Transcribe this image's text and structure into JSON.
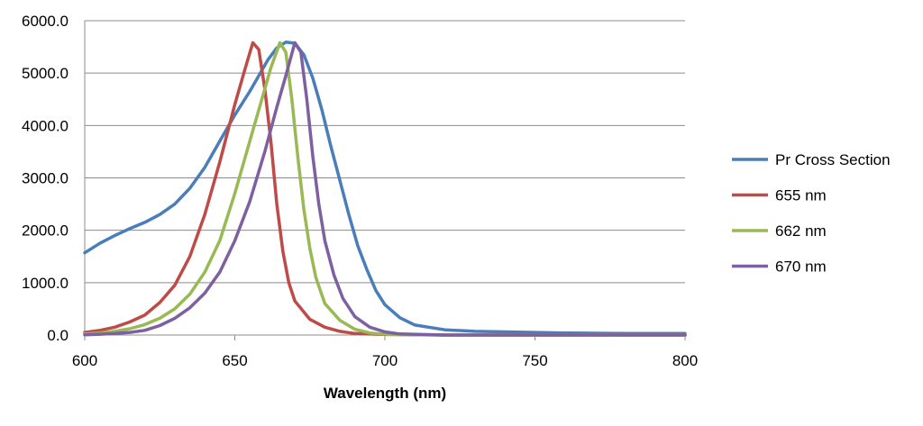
{
  "chart_data": {
    "type": "line",
    "title": "",
    "xlabel": "Wavelength (nm)",
    "ylabel": "",
    "xlim": [
      600,
      800
    ],
    "ylim": [
      0,
      6000
    ],
    "x_ticks": [
      600,
      650,
      700,
      750,
      800
    ],
    "x_tick_labels": [
      "600",
      "650",
      "700",
      "750",
      "800"
    ],
    "y_ticks": [
      0,
      1000,
      2000,
      3000,
      4000,
      5000,
      6000
    ],
    "y_tick_labels": [
      "0.0",
      "1000.0",
      "2000.0",
      "3000.0",
      "4000.0",
      "5000.0",
      "6000.0"
    ],
    "grid": true,
    "legend_position": "right",
    "series": [
      {
        "name": "Pr Cross Section",
        "color": "#4a7ebb",
        "points": [
          [
            600,
            1570
          ],
          [
            605,
            1750
          ],
          [
            610,
            1900
          ],
          [
            615,
            2030
          ],
          [
            620,
            2150
          ],
          [
            625,
            2300
          ],
          [
            630,
            2500
          ],
          [
            635,
            2800
          ],
          [
            640,
            3200
          ],
          [
            645,
            3700
          ],
          [
            650,
            4200
          ],
          [
            655,
            4650
          ],
          [
            658,
            4950
          ],
          [
            661,
            5250
          ],
          [
            664,
            5480
          ],
          [
            667,
            5590
          ],
          [
            670,
            5570
          ],
          [
            673,
            5350
          ],
          [
            676,
            4900
          ],
          [
            679,
            4300
          ],
          [
            682,
            3600
          ],
          [
            685,
            2950
          ],
          [
            688,
            2300
          ],
          [
            691,
            1700
          ],
          [
            694,
            1250
          ],
          [
            697,
            850
          ],
          [
            700,
            580
          ],
          [
            705,
            330
          ],
          [
            710,
            190
          ],
          [
            720,
            100
          ],
          [
            730,
            70
          ],
          [
            740,
            60
          ],
          [
            750,
            50
          ],
          [
            760,
            40
          ],
          [
            770,
            35
          ],
          [
            780,
            30
          ],
          [
            790,
            30
          ],
          [
            800,
            30
          ]
        ]
      },
      {
        "name": "655 nm",
        "color": "#be4b48",
        "points": [
          [
            600,
            50
          ],
          [
            605,
            90
          ],
          [
            610,
            150
          ],
          [
            615,
            250
          ],
          [
            620,
            380
          ],
          [
            625,
            620
          ],
          [
            630,
            950
          ],
          [
            635,
            1500
          ],
          [
            640,
            2300
          ],
          [
            645,
            3300
          ],
          [
            650,
            4400
          ],
          [
            653,
            5000
          ],
          [
            656,
            5580
          ],
          [
            658,
            5450
          ],
          [
            660,
            4700
          ],
          [
            662,
            3700
          ],
          [
            664,
            2500
          ],
          [
            666,
            1600
          ],
          [
            668,
            1000
          ],
          [
            670,
            650
          ],
          [
            675,
            300
          ],
          [
            680,
            150
          ],
          [
            685,
            70
          ],
          [
            690,
            30
          ],
          [
            700,
            10
          ],
          [
            720,
            0
          ],
          [
            800,
            0
          ]
        ]
      },
      {
        "name": "662 nm",
        "color": "#98b954",
        "points": [
          [
            600,
            20
          ],
          [
            605,
            40
          ],
          [
            610,
            70
          ],
          [
            615,
            120
          ],
          [
            620,
            200
          ],
          [
            625,
            320
          ],
          [
            630,
            500
          ],
          [
            635,
            780
          ],
          [
            640,
            1200
          ],
          [
            645,
            1800
          ],
          [
            650,
            2700
          ],
          [
            655,
            3700
          ],
          [
            659,
            4500
          ],
          [
            662,
            5100
          ],
          [
            665,
            5580
          ],
          [
            667,
            5400
          ],
          [
            669,
            4500
          ],
          [
            671,
            3400
          ],
          [
            673,
            2400
          ],
          [
            675,
            1650
          ],
          [
            677,
            1100
          ],
          [
            680,
            600
          ],
          [
            685,
            280
          ],
          [
            690,
            110
          ],
          [
            695,
            40
          ],
          [
            700,
            15
          ],
          [
            720,
            0
          ],
          [
            800,
            0
          ]
        ]
      },
      {
        "name": "670 nm",
        "color": "#7d60a0",
        "points": [
          [
            600,
            5
          ],
          [
            605,
            15
          ],
          [
            610,
            30
          ],
          [
            615,
            50
          ],
          [
            620,
            90
          ],
          [
            625,
            180
          ],
          [
            630,
            320
          ],
          [
            635,
            520
          ],
          [
            640,
            800
          ],
          [
            645,
            1200
          ],
          [
            650,
            1800
          ],
          [
            655,
            2550
          ],
          [
            660,
            3500
          ],
          [
            664,
            4350
          ],
          [
            667,
            4950
          ],
          [
            670,
            5580
          ],
          [
            672,
            5400
          ],
          [
            674,
            4500
          ],
          [
            676,
            3400
          ],
          [
            678,
            2500
          ],
          [
            680,
            1800
          ],
          [
            683,
            1150
          ],
          [
            686,
            700
          ],
          [
            690,
            350
          ],
          [
            695,
            150
          ],
          [
            700,
            60
          ],
          [
            705,
            20
          ],
          [
            720,
            0
          ],
          [
            800,
            0
          ]
        ]
      }
    ]
  }
}
